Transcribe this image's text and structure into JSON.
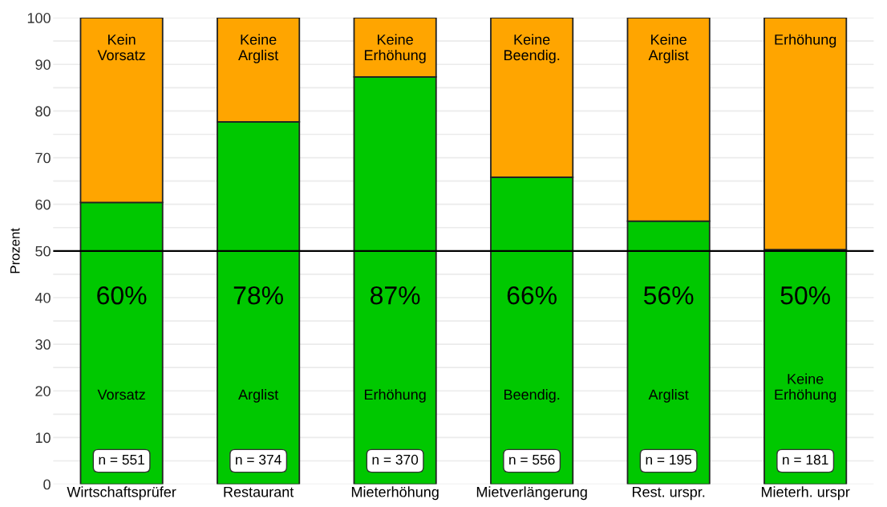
{
  "chart_data": {
    "type": "bar",
    "stacked": true,
    "ylabel": "Prozent",
    "categories": [
      "Wirtschaftsprüfer",
      "Restaurant",
      "Mieterhöhung",
      "Mietverlängerung",
      "Rest. urspr.",
      "Mieterh. urspr"
    ],
    "series": [
      {
        "color": "#00c800",
        "values": [
          60.4,
          77.7,
          87.3,
          65.8,
          56.4,
          50.3
        ],
        "value_labels": [
          "60%",
          "78%",
          "87%",
          "66%",
          "56%",
          "50%"
        ]
      },
      {
        "color": "#ffa500",
        "values": [
          39.6,
          22.3,
          12.7,
          34.2,
          43.6,
          49.7
        ]
      }
    ],
    "ylim": [
      0,
      100
    ],
    "yticks": [
      0,
      {
        "value": 5,
        "label": null
      },
      10,
      {
        "value": 15,
        "label": null
      },
      20,
      {
        "value": 25,
        "label": null
      },
      30,
      {
        "value": 35,
        "label": null
      },
      40,
      {
        "value": 45,
        "label": null
      },
      50,
      {
        "value": 55,
        "label": null
      },
      60,
      {
        "value": 65,
        "label": null
      },
      70,
      {
        "value": 75,
        "label": null
      },
      80,
      {
        "value": 85,
        "label": null
      },
      90,
      {
        "value": 95,
        "label": null
      },
      100
    ],
    "grid": "y",
    "legend": false,
    "ref_lines": [
      {
        "axis": "y",
        "value": 50,
        "color": "#000000",
        "line_style": "solid"
      }
    ],
    "annotations": [
      "Kein\nVorsatz",
      "Keine\nArglist",
      "Keine\nErhöhung",
      "Keine\nBeendig.",
      "Keine\nArglist",
      "Erhöhung",
      "Vorsatz",
      "Arglist",
      "Erhöhung",
      "Beendig.",
      "Arglist",
      "Keine\nErhöhung",
      "n = 551",
      "n = 374",
      "n = 370",
      "n = 556",
      "n = 195",
      "n = 181"
    ]
  }
}
